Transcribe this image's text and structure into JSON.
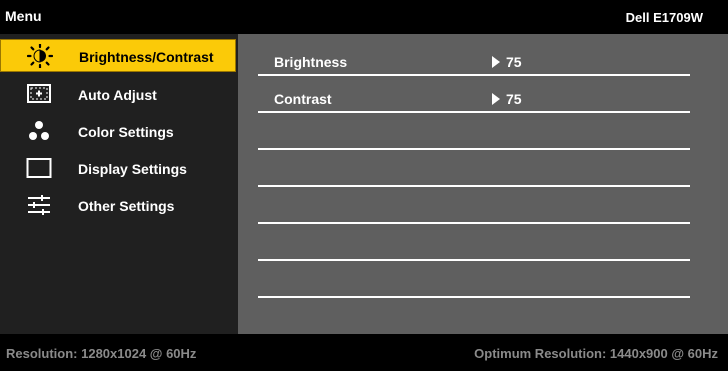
{
  "title_bar": {
    "menu_label": "Menu",
    "model_name": "Dell E1709W"
  },
  "menu": {
    "items": [
      {
        "label": "Brightness/Contrast",
        "icon": "brightness-icon",
        "selected": true
      },
      {
        "label": "Auto Adjust",
        "icon": "auto-adjust-icon",
        "selected": false
      },
      {
        "label": "Color Settings",
        "icon": "color-settings-icon",
        "selected": false
      },
      {
        "label": "Display Settings",
        "icon": "display-settings-icon",
        "selected": false
      },
      {
        "label": "Other Settings",
        "icon": "other-settings-icon",
        "selected": false
      }
    ]
  },
  "settings": {
    "brightness": {
      "label": "Brightness",
      "value": "75"
    },
    "contrast": {
      "label": "Contrast",
      "value": "75"
    }
  },
  "footer": {
    "resolution": "Resolution: 1280x1024 @ 60Hz",
    "optimum_resolution": "Optimum Resolution: 1440x900 @ 60Hz"
  },
  "colors": {
    "selected_highlight": "#fbca08",
    "menu_background": "#202020",
    "content_background": "#5f5f5f",
    "footer_text": "#8a8a8a"
  }
}
